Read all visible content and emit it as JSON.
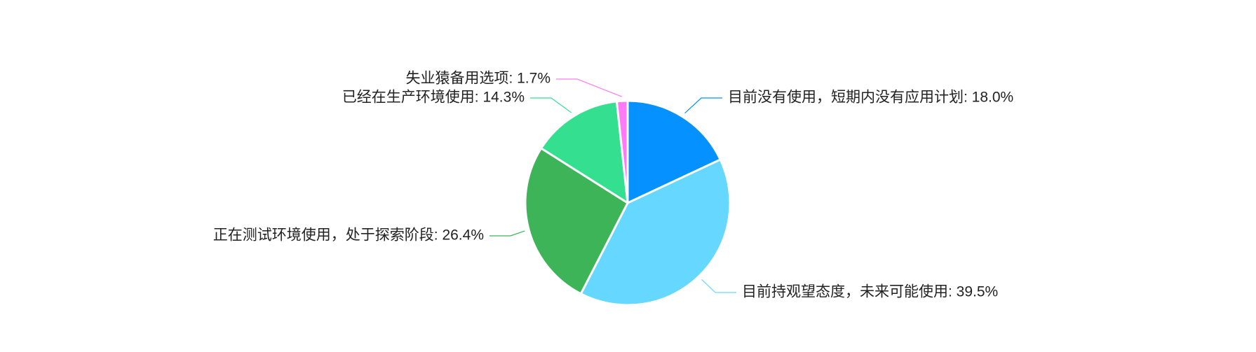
{
  "chart_data": {
    "type": "pie",
    "start_angle_deg": 0,
    "direction": "clockwise",
    "slices": [
      {
        "label": "目前没有使用，短期内没有应用计划",
        "value": 18.0,
        "display": "目前没有使用，短期内没有应用计划: 18.0%",
        "color": "#0591FF"
      },
      {
        "label": "目前持观望态度，未来可能使用",
        "value": 39.5,
        "display": "目前持观望态度，未来可能使用: 39.5%",
        "color": "#66D7FF"
      },
      {
        "label": "正在测试环境使用，处于探索阶段",
        "value": 26.4,
        "display": "正在测试环境使用，处于探索阶段: 26.4%",
        "color": "#3CB457"
      },
      {
        "label": "已经在生产环境使用",
        "value": 14.3,
        "display": "已经在生产环境使用: 14.3%",
        "color": "#35DF90"
      },
      {
        "label": "失业猿备用选项",
        "value": 1.7,
        "display": "失业猿备用选项: 1.7%",
        "color": "#FF7AF5"
      }
    ]
  }
}
